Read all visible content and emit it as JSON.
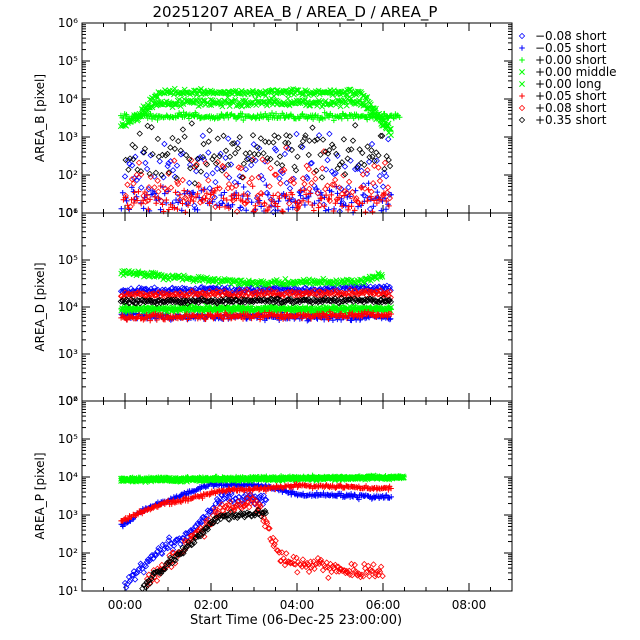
{
  "chart_data": {
    "type": "scatter",
    "title": "20251207 AREA_B  / AREA_D  / AREA_P",
    "xlabel": "Start Time (06-Dec-25 23:00:00)",
    "x_tick_labels": [
      "00:00",
      "02:00",
      "04:00",
      "06:00",
      "08:00"
    ],
    "x_ticks_hours": [
      0,
      2,
      4,
      6,
      8
    ],
    "xlim_hours": [
      -1.0,
      9.0
    ],
    "y_scale": "log",
    "legend_position": "right, outside",
    "legend": [
      {
        "label": "−0.08 short",
        "color": "#0000ff",
        "marker": "diamond"
      },
      {
        "label": "−0.05 short",
        "color": "#0000ff",
        "marker": "plus"
      },
      {
        "label": "+0.00 short",
        "color": "#00ff00",
        "marker": "plus"
      },
      {
        "label": "+0.00 middle",
        "color": "#00ff00",
        "marker": "cross"
      },
      {
        "label": "+0.00 long",
        "color": "#00ff00",
        "marker": "cross"
      },
      {
        "label": "+0.05 short",
        "color": "#ff0000",
        "marker": "plus"
      },
      {
        "label": "+0.08 short",
        "color": "#ff0000",
        "marker": "diamond"
      },
      {
        "label": "+0.35 short",
        "color": "#000000",
        "marker": "diamond"
      }
    ],
    "panels": [
      {
        "ylabel": "AREA_B [pixel]",
        "ylim": [
          10,
          1000000
        ],
        "y_tick_labels": [
          "10¹",
          "10²",
          "10³",
          "10⁴",
          "10⁵",
          "10⁶"
        ],
        "y_tick_exponents": [
          1,
          2,
          3,
          4,
          5,
          6
        ],
        "series": [
          {
            "legend": 0,
            "marker": "diamond",
            "color": "#0000ff",
            "level": [
              {
                "t": 0,
                "v": 90
              },
              {
                "t": 6.2,
                "v": 90
              }
            ],
            "spread": 0.9
          },
          {
            "legend": 1,
            "marker": "plus",
            "color": "#0000ff",
            "level": [
              {
                "t": -0.1,
                "v": 20
              },
              {
                "t": 6.2,
                "v": 20
              }
            ],
            "spread": 0.4
          },
          {
            "legend": 2,
            "marker": "plus",
            "color": "#00ff00",
            "level": [
              {
                "t": -0.1,
                "v": 3500
              },
              {
                "t": 6.4,
                "v": 3500
              }
            ],
            "spread": 0.08
          },
          {
            "legend": 3,
            "marker": "cross",
            "color": "#00ff00",
            "level": [
              {
                "t": -0.1,
                "v": 1800
              },
              {
                "t": 0.8,
                "v": 8000
              },
              {
                "t": 5.5,
                "v": 8000
              },
              {
                "t": 6.2,
                "v": 1300
              }
            ],
            "spread": 0.1
          },
          {
            "legend": 4,
            "marker": "cross",
            "color": "#00ff00",
            "level": [
              {
                "t": 0.2,
                "v": 3000
              },
              {
                "t": 0.8,
                "v": 15000
              },
              {
                "t": 5.5,
                "v": 15000
              },
              {
                "t": 6.2,
                "v": 1500
              }
            ],
            "spread": 0.08
          },
          {
            "legend": 5,
            "marker": "plus",
            "color": "#ff0000",
            "level": [
              {
                "t": -0.1,
                "v": 20
              },
              {
                "t": 6.2,
                "v": 20
              }
            ],
            "spread": 0.4
          },
          {
            "legend": 6,
            "marker": "diamond",
            "color": "#ff0000",
            "level": [
              {
                "t": 0,
                "v": 50
              },
              {
                "t": 6.2,
                "v": 50
              }
            ],
            "spread": 0.8
          },
          {
            "legend": 7,
            "marker": "diamond",
            "color": "#000000",
            "level": [
              {
                "t": 0,
                "v": 400
              },
              {
                "t": 6.2,
                "v": 400
              }
            ],
            "spread": 0.7
          }
        ]
      },
      {
        "ylabel": "AREA_D [pixel]",
        "ylim": [
          100,
          1000000
        ],
        "y_tick_labels": [
          "10²",
          "10³",
          "10⁴",
          "10⁵",
          "10⁶"
        ],
        "y_tick_exponents": [
          2,
          3,
          4,
          5,
          6
        ],
        "series": [
          {
            "legend": 0,
            "marker": "diamond",
            "color": "#0000ff",
            "level": [
              {
                "t": -0.1,
                "v": 22000
              },
              {
                "t": 6.2,
                "v": 25000
              }
            ],
            "spread": 0.08
          },
          {
            "legend": 1,
            "marker": "plus",
            "color": "#0000ff",
            "level": [
              {
                "t": -0.1,
                "v": 6500
              },
              {
                "t": 6.2,
                "v": 6000
              }
            ],
            "spread": 0.07
          },
          {
            "legend": 2,
            "marker": "plus",
            "color": "#00ff00",
            "level": [
              {
                "t": -0.1,
                "v": 9000
              },
              {
                "t": 6.2,
                "v": 9000
              }
            ],
            "spread": 0.06
          },
          {
            "legend": 3,
            "marker": "cross",
            "color": "#00ff00",
            "level": [
              {
                "t": -0.1,
                "v": 9000
              },
              {
                "t": 6.2,
                "v": 9000
              }
            ],
            "spread": 0.06
          },
          {
            "legend": 4,
            "marker": "cross",
            "color": "#00ff00",
            "level": [
              {
                "t": -0.1,
                "v": 55000
              },
              {
                "t": 3.0,
                "v": 32000
              },
              {
                "t": 5.5,
                "v": 35000
              },
              {
                "t": 6.0,
                "v": 50000
              }
            ],
            "spread": 0.06
          },
          {
            "legend": 5,
            "marker": "plus",
            "color": "#ff0000",
            "level": [
              {
                "t": -0.1,
                "v": 6000
              },
              {
                "t": 6.2,
                "v": 7000
              }
            ],
            "spread": 0.07
          },
          {
            "legend": 6,
            "marker": "diamond",
            "color": "#ff0000",
            "level": [
              {
                "t": -0.1,
                "v": 18000
              },
              {
                "t": 6.2,
                "v": 20000
              }
            ],
            "spread": 0.07
          },
          {
            "legend": 7,
            "marker": "diamond",
            "color": "#000000",
            "level": [
              {
                "t": -0.1,
                "v": 13000
              },
              {
                "t": 6.2,
                "v": 14000
              }
            ],
            "spread": 0.05
          }
        ]
      },
      {
        "ylabel": "AREA_P [pixel]",
        "ylim": [
          10,
          1000000
        ],
        "y_tick_labels": [
          "10¹",
          "10²",
          "10³",
          "10⁴",
          "10⁵",
          "10⁶"
        ],
        "y_tick_exponents": [
          1,
          2,
          3,
          4,
          5,
          6
        ],
        "series": [
          {
            "legend": 0,
            "marker": "diamond",
            "color": "#0000ff",
            "level": [
              {
                "t": 0,
                "v": 15
              },
              {
                "t": 0.8,
                "v": 120
              },
              {
                "t": 1.5,
                "v": 300
              },
              {
                "t": 2.3,
                "v": 3000
              },
              {
                "t": 3.3,
                "v": 2500
              }
            ],
            "spread": 0.15
          },
          {
            "legend": 1,
            "marker": "plus",
            "color": "#0000ff",
            "level": [
              {
                "t": -0.1,
                "v": 500
              },
              {
                "t": 0.5,
                "v": 1500
              },
              {
                "t": 2.0,
                "v": 6500
              },
              {
                "t": 3.2,
                "v": 6000
              },
              {
                "t": 4.0,
                "v": 3500
              },
              {
                "t": 6.2,
                "v": 3000
              }
            ],
            "spread": 0.05
          },
          {
            "legend": 2,
            "marker": "plus",
            "color": "#00ff00",
            "level": [
              {
                "t": -0.1,
                "v": 9000
              },
              {
                "t": 6.5,
                "v": 10000
              }
            ],
            "spread": 0.04
          },
          {
            "legend": 3,
            "marker": "cross",
            "color": "#00ff00",
            "level": [
              {
                "t": -0.1,
                "v": 8500
              },
              {
                "t": 6.5,
                "v": 9500
              }
            ],
            "spread": 0.04
          },
          {
            "legend": 4,
            "marker": "cross",
            "color": "#00ff00",
            "level": [
              {
                "t": -0.1,
                "v": 8000
              },
              {
                "t": 6.5,
                "v": 10000
              }
            ],
            "spread": 0.04
          },
          {
            "legend": 5,
            "marker": "plus",
            "color": "#ff0000",
            "level": [
              {
                "t": -0.1,
                "v": 700
              },
              {
                "t": 0.8,
                "v": 1800
              },
              {
                "t": 2.3,
                "v": 4500
              },
              {
                "t": 3.3,
                "v": 5000
              },
              {
                "t": 4.0,
                "v": 6000
              },
              {
                "t": 6.2,
                "v": 5000
              }
            ],
            "spread": 0.05
          },
          {
            "legend": 6,
            "marker": "diamond",
            "color": "#ff0000",
            "level": [
              {
                "t": 0.5,
                "v": 15
              },
              {
                "t": 1.3,
                "v": 120
              },
              {
                "t": 2.2,
                "v": 1200
              },
              {
                "t": 3.0,
                "v": 2500
              },
              {
                "t": 3.7,
                "v": 60
              },
              {
                "t": 6.0,
                "v": 30
              }
            ],
            "spread": 0.2
          },
          {
            "legend": 7,
            "marker": "diamond",
            "color": "#000000",
            "level": [
              {
                "t": 0.4,
                "v": 12
              },
              {
                "t": 2.2,
                "v": 900
              },
              {
                "t": 3.3,
                "v": 1200
              }
            ],
            "spread": 0.1
          }
        ]
      }
    ]
  }
}
